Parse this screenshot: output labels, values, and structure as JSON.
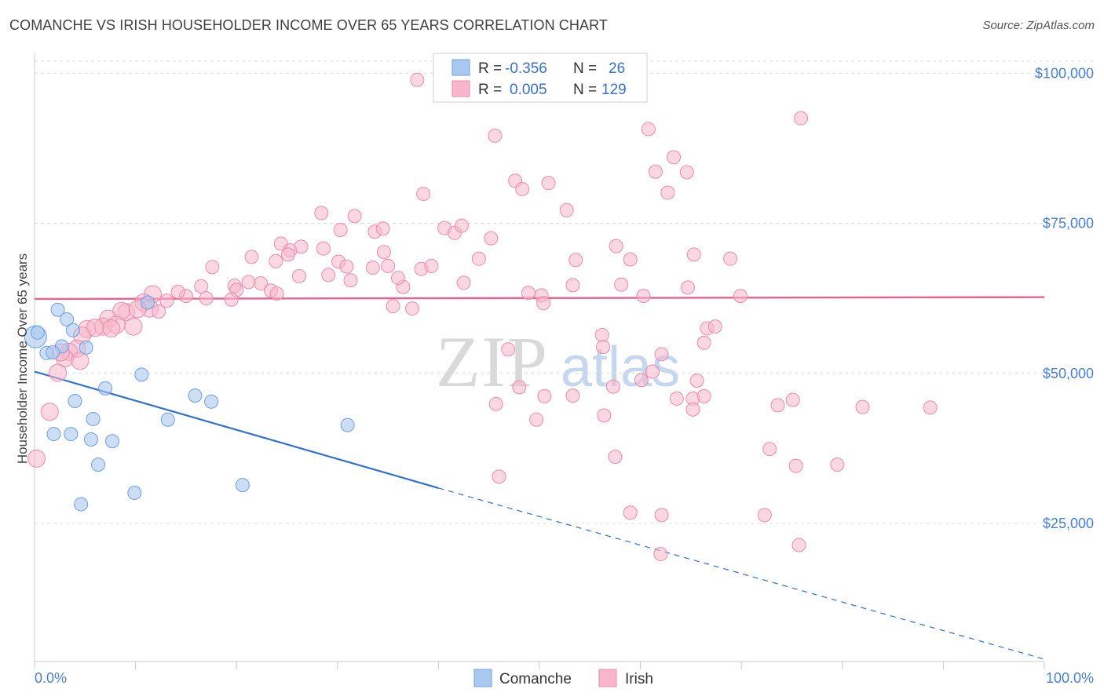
{
  "title": "COMANCHE VS IRISH HOUSEHOLDER INCOME OVER 65 YEARS CORRELATION CHART",
  "source": "Source: ZipAtlas.com",
  "watermark": {
    "zip": "ZIP",
    "atlas": "atlas"
  },
  "legend": {
    "rows": [
      {
        "r_label": "R =",
        "r_value": "-0.356",
        "n_label": "N =",
        "n_value": "26",
        "color": "#a9c8f0"
      },
      {
        "r_label": "R =",
        "r_value": "0.005",
        "n_label": "N =",
        "n_value": "129",
        "color": "#f7b6ca"
      }
    ]
  },
  "bottom_legend": [
    {
      "label": "Comanche",
      "color": "#a9c8f0"
    },
    {
      "label": "Irish",
      "color": "#f7b6ca"
    }
  ],
  "colors": {
    "comanche_fill": "#a9c8f0",
    "comanche_stroke": "#6d9fe0",
    "comanche_line": "#2f6fcf",
    "irish_fill": "#f7b6ca",
    "irish_stroke": "#eb8bab",
    "irish_line": "#e8628e",
    "tick_text": "#4a7fd0",
    "grid": "#dcdcdc"
  },
  "chart_data": {
    "type": "scatter",
    "title": "COMANCHE VS IRISH HOUSEHOLDER INCOME OVER 65 YEARS CORRELATION CHART",
    "xlabel": "",
    "ylabel": "Householder Income Over 65 years",
    "xlim": [
      0,
      100
    ],
    "ylim": [
      2000,
      102000
    ],
    "x_tick_labels": [
      "0.0%",
      "100.0%"
    ],
    "y_ticks": [
      25000,
      50000,
      75000,
      100000
    ],
    "y_tick_labels": [
      "$25,000",
      "$50,000",
      "$75,000",
      "$100,000"
    ],
    "grid": true,
    "series": [
      {
        "name": "Comanche",
        "points": [
          [
            0.1,
            56100
          ],
          [
            0.3,
            56800
          ],
          [
            1.2,
            53400
          ],
          [
            2.3,
            60600
          ],
          [
            3.2,
            59000
          ],
          [
            2.7,
            54500
          ],
          [
            3.8,
            57200
          ],
          [
            5.1,
            54300
          ],
          [
            1.8,
            53500
          ],
          [
            4.0,
            45400
          ],
          [
            7.0,
            47500
          ],
          [
            10.6,
            49800
          ],
          [
            5.8,
            42400
          ],
          [
            13.2,
            42300
          ],
          [
            15.9,
            46300
          ],
          [
            17.5,
            45300
          ],
          [
            1.9,
            39900
          ],
          [
            3.6,
            39900
          ],
          [
            5.6,
            39000
          ],
          [
            7.7,
            38700
          ],
          [
            6.3,
            34800
          ],
          [
            31.0,
            41400
          ],
          [
            4.6,
            28200
          ],
          [
            9.9,
            30100
          ],
          [
            20.6,
            31400
          ],
          [
            11.2,
            61800
          ]
        ],
        "trend": {
          "x0": 0,
          "y0": 50300,
          "x1": 40,
          "y1": 30900,
          "dash_to_x": 100,
          "dash_to_y": 2400
        }
      },
      {
        "name": "Irish",
        "points": [
          [
            37.9,
            98900
          ],
          [
            75.9,
            92500
          ],
          [
            45.6,
            89600
          ],
          [
            60.8,
            90700
          ],
          [
            63.3,
            86000
          ],
          [
            50.9,
            81700
          ],
          [
            47.6,
            82100
          ],
          [
            61.5,
            83600
          ],
          [
            64.6,
            83500
          ],
          [
            48.3,
            80700
          ],
          [
            38.5,
            79900
          ],
          [
            62.7,
            80100
          ],
          [
            28.4,
            76700
          ],
          [
            31.7,
            76200
          ],
          [
            52.7,
            77200
          ],
          [
            30.3,
            73900
          ],
          [
            33.7,
            73600
          ],
          [
            34.5,
            74100
          ],
          [
            40.6,
            74200
          ],
          [
            41.6,
            73400
          ],
          [
            45.2,
            72500
          ],
          [
            57.6,
            71200
          ],
          [
            42.3,
            74600
          ],
          [
            24.4,
            71600
          ],
          [
            25.3,
            70500
          ],
          [
            26.4,
            71100
          ],
          [
            28.6,
            70800
          ],
          [
            25.1,
            69800
          ],
          [
            21.5,
            69400
          ],
          [
            23.9,
            68700
          ],
          [
            30.1,
            68600
          ],
          [
            34.6,
            70200
          ],
          [
            38.3,
            67400
          ],
          [
            44.0,
            69100
          ],
          [
            53.6,
            68900
          ],
          [
            59.0,
            69000
          ],
          [
            68.9,
            69100
          ],
          [
            29.1,
            66400
          ],
          [
            30.9,
            67800
          ],
          [
            33.5,
            67600
          ],
          [
            35.0,
            67900
          ],
          [
            39.3,
            67900
          ],
          [
            17.6,
            67700
          ],
          [
            21.2,
            65200
          ],
          [
            19.8,
            64600
          ],
          [
            22.4,
            65000
          ],
          [
            20.0,
            63900
          ],
          [
            23.4,
            63800
          ],
          [
            24.0,
            63300
          ],
          [
            26.2,
            66200
          ],
          [
            31.3,
            65500
          ],
          [
            36.5,
            64400
          ],
          [
            42.5,
            65100
          ],
          [
            50.2,
            63000
          ],
          [
            53.3,
            64700
          ],
          [
            58.1,
            64800
          ],
          [
            60.3,
            62900
          ],
          [
            16.5,
            64500
          ],
          [
            15.0,
            62900
          ],
          [
            14.2,
            63600
          ],
          [
            11.7,
            63200
          ],
          [
            13.1,
            62100
          ],
          [
            10.8,
            61800
          ],
          [
            11.4,
            60800
          ],
          [
            12.3,
            60300
          ],
          [
            9.1,
            60200
          ],
          [
            8.6,
            60400
          ],
          [
            10.2,
            60700
          ],
          [
            17.0,
            62500
          ],
          [
            19.5,
            62300
          ],
          [
            7.3,
            59100
          ],
          [
            6.8,
            57800
          ],
          [
            5.2,
            57400
          ],
          [
            6.0,
            57600
          ],
          [
            8.1,
            58100
          ],
          [
            4.7,
            56300
          ],
          [
            4.2,
            54100
          ],
          [
            9.8,
            57800
          ],
          [
            3.4,
            53600
          ],
          [
            3.0,
            52500
          ],
          [
            2.3,
            50100
          ],
          [
            4.5,
            52100
          ],
          [
            2.6,
            53500
          ],
          [
            7.6,
            57500
          ],
          [
            48.9,
            63400
          ],
          [
            50.4,
            61700
          ],
          [
            37.4,
            60800
          ],
          [
            35.5,
            61200
          ],
          [
            46.9,
            54000
          ],
          [
            56.2,
            56400
          ],
          [
            62.1,
            53200
          ],
          [
            56.3,
            54400
          ],
          [
            61.2,
            50300
          ],
          [
            48.0,
            47700
          ],
          [
            45.7,
            44900
          ],
          [
            50.5,
            46200
          ],
          [
            53.3,
            46300
          ],
          [
            60.1,
            48900
          ],
          [
            57.3,
            47800
          ],
          [
            63.6,
            45800
          ],
          [
            65.2,
            45800
          ],
          [
            66.3,
            46200
          ],
          [
            65.6,
            48800
          ],
          [
            65.2,
            44000
          ],
          [
            75.1,
            45600
          ],
          [
            73.6,
            44700
          ],
          [
            82.0,
            44400
          ],
          [
            0.2,
            35800
          ],
          [
            1.5,
            43600
          ],
          [
            56.4,
            43000
          ],
          [
            46.0,
            32800
          ],
          [
            49.7,
            42300
          ],
          [
            57.5,
            36100
          ],
          [
            59.0,
            26800
          ],
          [
            62.1,
            26400
          ],
          [
            72.3,
            26400
          ],
          [
            75.4,
            34600
          ],
          [
            79.5,
            34800
          ],
          [
            62.0,
            19900
          ],
          [
            75.7,
            21400
          ],
          [
            72.8,
            37400
          ],
          [
            36.0,
            65900
          ],
          [
            65.3,
            69800
          ],
          [
            69.9,
            62900
          ],
          [
            64.7,
            64300
          ],
          [
            66.6,
            57500
          ],
          [
            66.3,
            55100
          ],
          [
            67.4,
            57800
          ],
          [
            88.7,
            44300
          ]
        ],
        "trend": {
          "x0": 0,
          "y0": 62400,
          "x1": 100,
          "y1": 62700
        }
      }
    ]
  }
}
